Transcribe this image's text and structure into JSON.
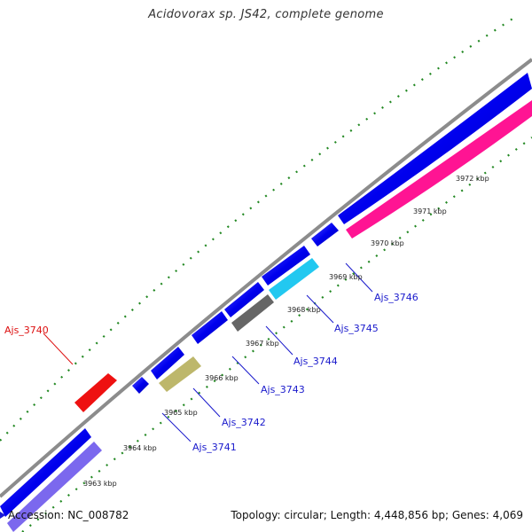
{
  "title": "Acidovorax sp. JS42, complete genome",
  "footer": {
    "accession": "Accession: NC_008782",
    "summary": "Topology: circular; Length: 4,448,856 bp; Genes: 4,069"
  },
  "colors": {
    "backbone": "#8c8c8c",
    "tick": "#228822",
    "label_blue": "#1a1acc",
    "label_red": "#dd1111",
    "gene_blue": "#0000ee",
    "gene_red": "#ee1111",
    "gene_pink": "#ff1493",
    "gene_purple": "#7b68ee",
    "gene_cyan": "#22c8f0",
    "gene_gray": "#666666",
    "gene_khaki": "#bdb76b"
  },
  "scale": {
    "tick_labels": [
      "3963 kbp",
      "3964 kbp",
      "3965 kbp",
      "3966 kbp",
      "3967 kbp",
      "3968 kbp",
      "3969 kbp",
      "3970 kbp",
      "3971 kbp",
      "3972 kbp"
    ]
  },
  "genes": [
    {
      "name": "Ajs_3740",
      "color": "red"
    },
    {
      "name": "Ajs_3741",
      "color": "blue"
    },
    {
      "name": "Ajs_3742",
      "color": "blue"
    },
    {
      "name": "Ajs_3743",
      "color": "blue"
    },
    {
      "name": "Ajs_3744",
      "color": "blue"
    },
    {
      "name": "Ajs_3745",
      "color": "blue"
    },
    {
      "name": "Ajs_3746",
      "color": "blue"
    }
  ]
}
